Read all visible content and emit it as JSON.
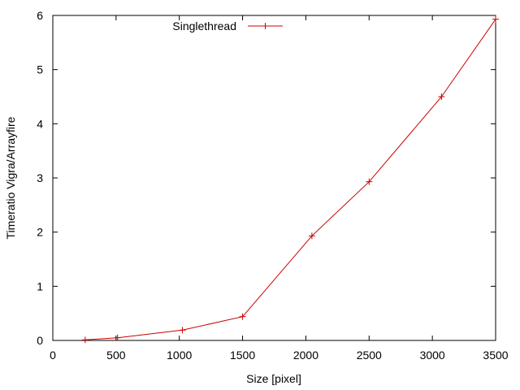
{
  "chart_data": {
    "type": "line",
    "title": "",
    "xlabel": "Size [pixel]",
    "ylabel": "Timeratio Vigra/Arrayfire",
    "xlim": [
      0,
      3500
    ],
    "ylim": [
      0,
      6
    ],
    "xticks": [
      0,
      500,
      1000,
      1500,
      2000,
      2500,
      3000,
      3500
    ],
    "yticks": [
      0,
      1,
      2,
      3,
      4,
      5,
      6
    ],
    "grid": false,
    "legend_position": "top-center",
    "series": [
      {
        "name": "Singlethread",
        "color": "#cc0000",
        "marker": "plus",
        "x": [
          256,
          512,
          1024,
          1500,
          2048,
          2500,
          3072,
          3500
        ],
        "y": [
          0.01,
          0.05,
          0.19,
          0.44,
          1.93,
          2.93,
          4.5,
          5.93
        ]
      }
    ]
  }
}
